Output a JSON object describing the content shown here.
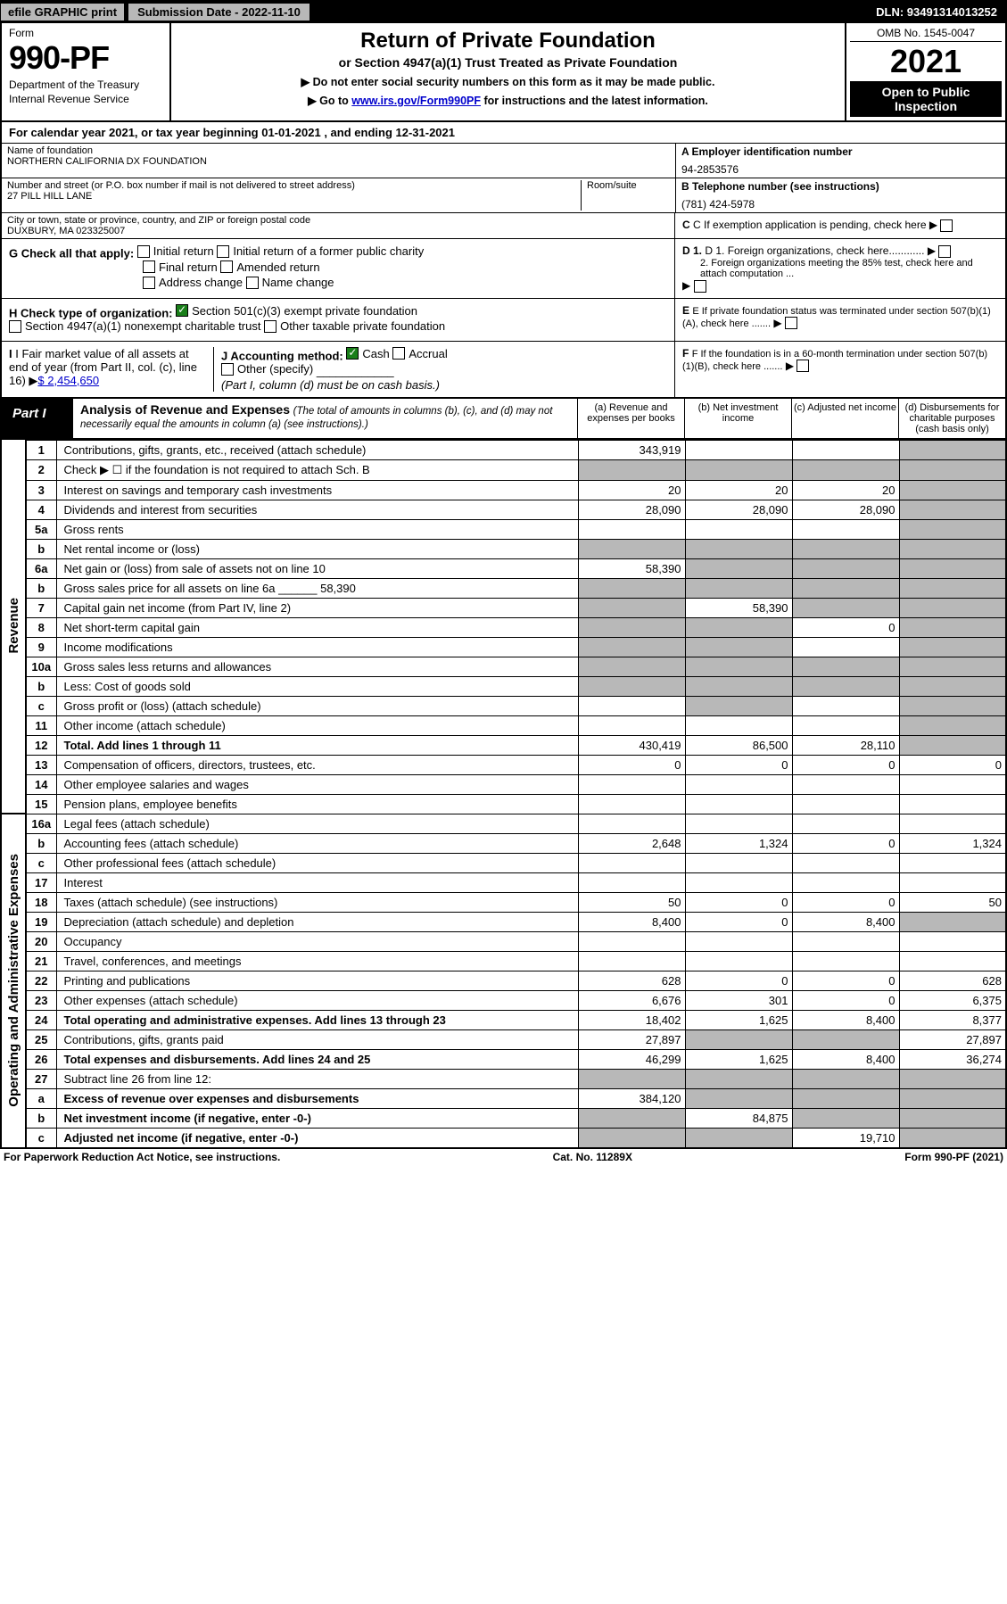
{
  "topbar": {
    "efile": "efile GRAPHIC print",
    "subdate": "Submission Date - 2022-11-10",
    "dln": "DLN: 93491314013252"
  },
  "header": {
    "form_label": "Form",
    "form_no": "990-PF",
    "dept1": "Department of the Treasury",
    "dept2": "Internal Revenue Service",
    "title1": "Return of Private Foundation",
    "title2": "or Section 4947(a)(1) Trust Treated as Private Foundation",
    "note1": "▶ Do not enter social security numbers on this form as it may be made public.",
    "note2a": "▶ Go to ",
    "note2link": "www.irs.gov/Form990PF",
    "note2b": " for instructions and the latest information.",
    "omb": "OMB No. 1545-0047",
    "year": "2021",
    "open1": "Open to Public",
    "open2": "Inspection"
  },
  "calrow": "For calendar year 2021, or tax year beginning 01-01-2021           , and ending 12-31-2021",
  "info": {
    "name_lbl": "Name of foundation",
    "name": "NORTHERN CALIFORNIA DX FOUNDATION",
    "addr_lbl": "Number and street (or P.O. box number if mail is not delivered to street address)",
    "addr": "27 PILL HILL LANE",
    "room_lbl": "Room/suite",
    "city_lbl": "City or town, state or province, country, and ZIP or foreign postal code",
    "city": "DUXBURY, MA  023325007",
    "ein_lbl": "A Employer identification number",
    "ein": "94-2853576",
    "tel_lbl": "B Telephone number (see instructions)",
    "tel": "(781) 424-5978",
    "c_lbl": "C If exemption application is pending, check here",
    "d1": "D 1. Foreign organizations, check here............",
    "d2": "2. Foreign organizations meeting the 85% test, check here and attach computation ...",
    "e_lbl": "E  If private foundation status was terminated under section 507(b)(1)(A), check here .......",
    "f_lbl": "F  If the foundation is in a 60-month termination under section 507(b)(1)(B), check here .......",
    "g_lbl": "G Check all that apply:",
    "g_initial": "Initial return",
    "g_initial_pc": "Initial return of a former public charity",
    "g_final": "Final return",
    "g_amended": "Amended return",
    "g_addr": "Address change",
    "g_name": "Name change",
    "h_lbl": "H Check type of organization:",
    "h_501c3": "Section 501(c)(3) exempt private foundation",
    "h_4947": "Section 4947(a)(1) nonexempt charitable trust",
    "h_other": "Other taxable private foundation",
    "i_lbl": "I Fair market value of all assets at end of year (from Part II, col. (c), line 16)",
    "i_amt": "$  2,454,650",
    "j_lbl": "J Accounting method:",
    "j_cash": "Cash",
    "j_accrual": "Accrual",
    "j_other": "Other (specify)",
    "j_note": "(Part I, column (d) must be on cash basis.)"
  },
  "part1": {
    "label": "Part I",
    "title": "Analysis of Revenue and Expenses",
    "sub": "(The total of amounts in columns (b), (c), and (d) may not necessarily equal the amounts in column (a) (see instructions).)",
    "col_a": "(a)   Revenue and expenses per books",
    "col_b": "(b)   Net investment income",
    "col_c": "(c)   Adjusted net income",
    "col_d": "(d)  Disbursements for charitable purposes (cash basis only)"
  },
  "sidebars": {
    "rev": "Revenue",
    "exp": "Operating and Administrative Expenses"
  },
  "rows": [
    {
      "n": "1",
      "lbl": "Contributions, gifts, grants, etc., received (attach schedule)",
      "a": "343,919",
      "b": "",
      "c": "",
      "d": "",
      "d_shade": true
    },
    {
      "n": "2",
      "lbl": "Check ▶ ☐ if the foundation is not required to attach Sch. B",
      "a": "",
      "b": "",
      "c": "",
      "d": "",
      "a_shade": true,
      "b_shade": true,
      "c_shade": true,
      "d_shade": true,
      "bold_not": true
    },
    {
      "n": "3",
      "lbl": "Interest on savings and temporary cash investments",
      "a": "20",
      "b": "20",
      "c": "20",
      "d": "",
      "d_shade": true
    },
    {
      "n": "4",
      "lbl": "Dividends and interest from securities",
      "a": "28,090",
      "b": "28,090",
      "c": "28,090",
      "d": "",
      "d_shade": true
    },
    {
      "n": "5a",
      "lbl": "Gross rents",
      "a": "",
      "b": "",
      "c": "",
      "d": "",
      "d_shade": true
    },
    {
      "n": "b",
      "lbl": "Net rental income or (loss)",
      "a": "",
      "b": "",
      "c": "",
      "d": "",
      "a_shade": true,
      "b_shade": true,
      "c_shade": true,
      "d_shade": true
    },
    {
      "n": "6a",
      "lbl": "Net gain or (loss) from sale of assets not on line 10",
      "a": "58,390",
      "b": "",
      "c": "",
      "d": "",
      "b_shade": true,
      "c_shade": true,
      "d_shade": true
    },
    {
      "n": "b",
      "lbl": "Gross sales price for all assets on line 6a ______ 58,390",
      "a": "",
      "b": "",
      "c": "",
      "d": "",
      "a_shade": true,
      "b_shade": true,
      "c_shade": true,
      "d_shade": true
    },
    {
      "n": "7",
      "lbl": "Capital gain net income (from Part IV, line 2)",
      "a": "",
      "b": "58,390",
      "c": "",
      "d": "",
      "a_shade": true,
      "c_shade": true,
      "d_shade": true
    },
    {
      "n": "8",
      "lbl": "Net short-term capital gain",
      "a": "",
      "b": "",
      "c": "0",
      "d": "",
      "a_shade": true,
      "b_shade": true,
      "d_shade": true
    },
    {
      "n": "9",
      "lbl": "Income modifications",
      "a": "",
      "b": "",
      "c": "",
      "d": "",
      "a_shade": true,
      "b_shade": true,
      "d_shade": true
    },
    {
      "n": "10a",
      "lbl": "Gross sales less returns and allowances",
      "a": "",
      "b": "",
      "c": "",
      "d": "",
      "a_shade": true,
      "b_shade": true,
      "c_shade": true,
      "d_shade": true
    },
    {
      "n": "b",
      "lbl": "Less: Cost of goods sold",
      "a": "",
      "b": "",
      "c": "",
      "d": "",
      "a_shade": true,
      "b_shade": true,
      "c_shade": true,
      "d_shade": true
    },
    {
      "n": "c",
      "lbl": "Gross profit or (loss) (attach schedule)",
      "a": "",
      "b": "",
      "c": "",
      "d": "",
      "b_shade": true,
      "d_shade": true
    },
    {
      "n": "11",
      "lbl": "Other income (attach schedule)",
      "a": "",
      "b": "",
      "c": "",
      "d": "",
      "d_shade": true
    },
    {
      "n": "12",
      "lbl": "Total. Add lines 1 through 11",
      "a": "430,419",
      "b": "86,500",
      "c": "28,110",
      "d": "",
      "bold": true,
      "d_shade": true
    },
    {
      "n": "13",
      "lbl": "Compensation of officers, directors, trustees, etc.",
      "a": "0",
      "b": "0",
      "c": "0",
      "d": "0"
    },
    {
      "n": "14",
      "lbl": "Other employee salaries and wages",
      "a": "",
      "b": "",
      "c": "",
      "d": ""
    },
    {
      "n": "15",
      "lbl": "Pension plans, employee benefits",
      "a": "",
      "b": "",
      "c": "",
      "d": ""
    },
    {
      "n": "16a",
      "lbl": "Legal fees (attach schedule)",
      "a": "",
      "b": "",
      "c": "",
      "d": ""
    },
    {
      "n": "b",
      "lbl": "Accounting fees (attach schedule)",
      "a": "2,648",
      "b": "1,324",
      "c": "0",
      "d": "1,324"
    },
    {
      "n": "c",
      "lbl": "Other professional fees (attach schedule)",
      "a": "",
      "b": "",
      "c": "",
      "d": ""
    },
    {
      "n": "17",
      "lbl": "Interest",
      "a": "",
      "b": "",
      "c": "",
      "d": ""
    },
    {
      "n": "18",
      "lbl": "Taxes (attach schedule) (see instructions)",
      "a": "50",
      "b": "0",
      "c": "0",
      "d": "50"
    },
    {
      "n": "19",
      "lbl": "Depreciation (attach schedule) and depletion",
      "a": "8,400",
      "b": "0",
      "c": "8,400",
      "d": "",
      "d_shade": true
    },
    {
      "n": "20",
      "lbl": "Occupancy",
      "a": "",
      "b": "",
      "c": "",
      "d": ""
    },
    {
      "n": "21",
      "lbl": "Travel, conferences, and meetings",
      "a": "",
      "b": "",
      "c": "",
      "d": ""
    },
    {
      "n": "22",
      "lbl": "Printing and publications",
      "a": "628",
      "b": "0",
      "c": "0",
      "d": "628"
    },
    {
      "n": "23",
      "lbl": "Other expenses (attach schedule)",
      "a": "6,676",
      "b": "301",
      "c": "0",
      "d": "6,375"
    },
    {
      "n": "24",
      "lbl": "Total operating and administrative expenses. Add lines 13 through 23",
      "a": "18,402",
      "b": "1,625",
      "c": "8,400",
      "d": "8,377",
      "bold": true
    },
    {
      "n": "25",
      "lbl": "Contributions, gifts, grants paid",
      "a": "27,897",
      "b": "",
      "c": "",
      "d": "27,897",
      "b_shade": true,
      "c_shade": true
    },
    {
      "n": "26",
      "lbl": "Total expenses and disbursements. Add lines 24 and 25",
      "a": "46,299",
      "b": "1,625",
      "c": "8,400",
      "d": "36,274",
      "bold": true
    },
    {
      "n": "27",
      "lbl": "Subtract line 26 from line 12:",
      "a": "",
      "b": "",
      "c": "",
      "d": "",
      "a_shade": true,
      "b_shade": true,
      "c_shade": true,
      "d_shade": true
    },
    {
      "n": "a",
      "lbl": "Excess of revenue over expenses and disbursements",
      "a": "384,120",
      "b": "",
      "c": "",
      "d": "",
      "bold": true,
      "b_shade": true,
      "c_shade": true,
      "d_shade": true
    },
    {
      "n": "b",
      "lbl": "Net investment income (if negative, enter -0-)",
      "a": "",
      "b": "84,875",
      "c": "",
      "d": "",
      "bold": true,
      "a_shade": true,
      "c_shade": true,
      "d_shade": true
    },
    {
      "n": "c",
      "lbl": "Adjusted net income (if negative, enter -0-)",
      "a": "",
      "b": "",
      "c": "19,710",
      "d": "",
      "bold": true,
      "a_shade": true,
      "b_shade": true,
      "d_shade": true
    }
  ],
  "footer": {
    "left": "For Paperwork Reduction Act Notice, see instructions.",
    "mid": "Cat. No. 11289X",
    "right": "Form 990-PF (2021)"
  }
}
